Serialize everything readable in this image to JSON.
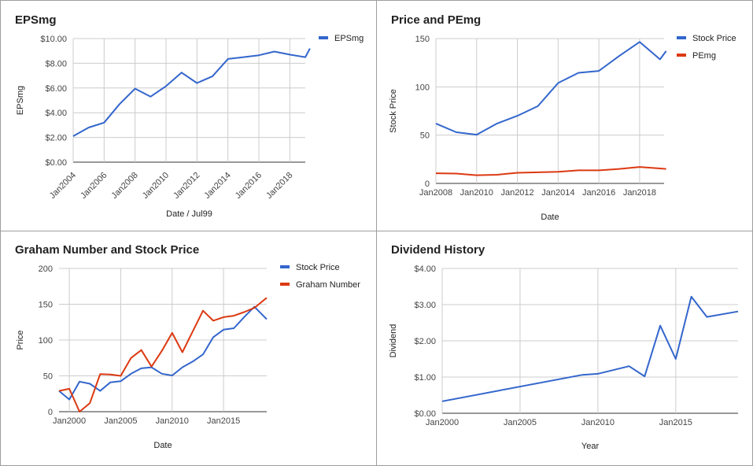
{
  "chart_data": [
    {
      "type": "line",
      "title": "EPSmg",
      "xlabel": "Date / Jul99",
      "ylabel": "EPSmg",
      "y_prefix": "$",
      "y_decimals": 2,
      "ylim": [
        0,
        10
      ],
      "y_ticks": [
        0,
        2,
        4,
        6,
        8,
        10
      ],
      "xlim": [
        2004,
        2019
      ],
      "x_ticks": [
        2004,
        2006,
        2008,
        2010,
        2012,
        2014,
        2016,
        2018
      ],
      "x_tick_labels": [
        "Jan2004",
        "Jan2006",
        "Jan2008",
        "Jan2010",
        "Jan2012",
        "Jan2014",
        "Jan2016",
        "Jan2018"
      ],
      "x_tick_rotate": true,
      "legend_position": "right",
      "series": [
        {
          "name": "EPSmg",
          "color": "#3366cc",
          "x": [
            2004,
            2005,
            2006,
            2007,
            2008,
            2009,
            2010,
            2011,
            2012,
            2013,
            2014,
            2015,
            2016,
            2017,
            2018,
            2019,
            2019.3
          ],
          "y": [
            2.1,
            2.8,
            3.2,
            4.7,
            5.95,
            5.3,
            6.15,
            7.25,
            6.4,
            6.95,
            8.35,
            8.5,
            8.65,
            8.95,
            8.7,
            8.5,
            9.2
          ]
        }
      ]
    },
    {
      "type": "line",
      "title": "Price and PEmg",
      "xlabel": "Date",
      "ylabel": "Stock Price",
      "y_prefix": "",
      "y_decimals": 0,
      "ylim": [
        0,
        150
      ],
      "y_ticks": [
        0,
        50,
        100,
        150
      ],
      "xlim": [
        2008,
        2019.2
      ],
      "x_ticks": [
        2008,
        2010,
        2012,
        2014,
        2016,
        2018
      ],
      "x_tick_labels": [
        "Jan2008",
        "Jan2010",
        "Jan2012",
        "Jan2014",
        "Jan2016",
        "Jan2018"
      ],
      "x_tick_rotate": false,
      "legend_position": "right",
      "series": [
        {
          "name": "Stock Price",
          "color": "#3366cc",
          "x": [
            2008,
            2009,
            2010,
            2011,
            2012,
            2013,
            2014,
            2015,
            2016,
            2017,
            2018,
            2019,
            2019.3
          ],
          "y": [
            62,
            53,
            50.5,
            62,
            70,
            80,
            104,
            114.5,
            116.5,
            132,
            146.5,
            128.5,
            137
          ]
        },
        {
          "name": "PEmg",
          "color": "#dc3912",
          "x": [
            2008,
            2009,
            2010,
            2011,
            2012,
            2013,
            2014,
            2015,
            2016,
            2017,
            2018,
            2019,
            2019.3
          ],
          "y": [
            10.5,
            10.2,
            8.5,
            9,
            11,
            11.5,
            12,
            13.5,
            13.5,
            15,
            17,
            15.5,
            15
          ]
        }
      ]
    },
    {
      "type": "line",
      "title": "Graham Number and Stock Price",
      "xlabel": "Date",
      "ylabel": "Price",
      "y_prefix": "",
      "y_decimals": 0,
      "ylim": [
        0,
        200
      ],
      "y_ticks": [
        0,
        50,
        100,
        150,
        200
      ],
      "xlim": [
        1999,
        2019.2
      ],
      "x_ticks": [
        2000,
        2005,
        2010,
        2015
      ],
      "x_tick_labels": [
        "Jan2000",
        "Jan2005",
        "Jan2010",
        "Jan2015"
      ],
      "x_tick_rotate": false,
      "legend_position": "right",
      "series": [
        {
          "name": "Stock Price",
          "color": "#3366cc",
          "x": [
            1999,
            2000,
            2001,
            2002,
            2003,
            2004,
            2005,
            2006,
            2007,
            2008,
            2009,
            2010,
            2011,
            2012,
            2013,
            2014,
            2015,
            2016,
            2017,
            2018,
            2019.2
          ],
          "y": [
            29,
            17,
            42,
            39,
            29,
            41,
            42.5,
            53,
            60.5,
            62,
            53,
            50.5,
            62,
            70,
            80,
            104,
            114.5,
            116.5,
            132,
            146.5,
            129
          ]
        },
        {
          "name": "Graham Number",
          "color": "#dc3912",
          "x": [
            1999,
            2000,
            2001,
            2002,
            2003,
            2004,
            2005,
            2006,
            2007,
            2008,
            2009,
            2010,
            2011,
            2012,
            2013,
            2014,
            2015,
            2016,
            2017,
            2018,
            2019.2
          ],
          "y": [
            29,
            32,
            0,
            12,
            52.5,
            52,
            50,
            75,
            86,
            63,
            85,
            110,
            83,
            112,
            141,
            127,
            132,
            134,
            139,
            145,
            159
          ]
        }
      ]
    },
    {
      "type": "line",
      "title": "Dividend History",
      "xlabel": "Year",
      "ylabel": "Dividend",
      "y_prefix": "$",
      "y_decimals": 2,
      "ylim": [
        0,
        4
      ],
      "y_ticks": [
        0,
        1,
        2,
        3,
        4
      ],
      "xlim": [
        2000,
        2019
      ],
      "x_ticks": [
        2000,
        2005,
        2010,
        2015
      ],
      "x_tick_labels": [
        "Jan2000",
        "Jan2005",
        "Jan2010",
        "Jan2015"
      ],
      "x_tick_rotate": false,
      "legend_position": "none",
      "series": [
        {
          "name": "",
          "color": "#3366cc",
          "x": [
            2000,
            2009,
            2010,
            2012,
            2013,
            2014,
            2015,
            2016,
            2017,
            2019
          ],
          "y": [
            0.33,
            1.06,
            1.09,
            1.3,
            1.02,
            2.42,
            1.5,
            3.22,
            2.66,
            2.81
          ]
        }
      ]
    }
  ]
}
